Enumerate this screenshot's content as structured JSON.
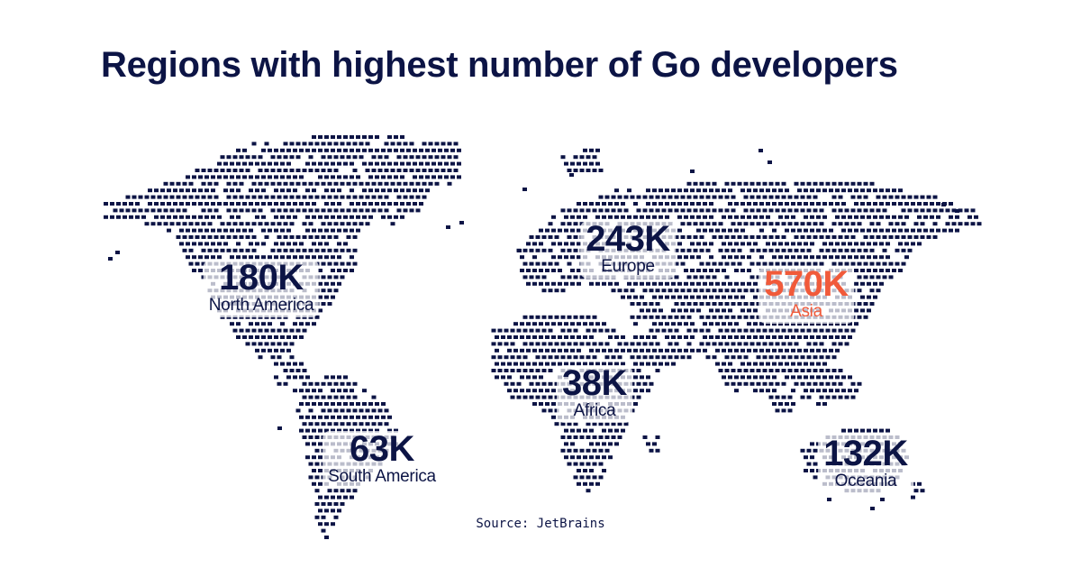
{
  "colors": {
    "title": "#0c1445",
    "dots": "#0c1445",
    "label_default": "#0c1445",
    "label_highlight": "#f15a3a"
  },
  "title": "Regions with highest number of Go developers",
  "source": "Source: JetBrains",
  "chart_data": {
    "type": "map",
    "title": "Regions with highest number of Go developers",
    "unit": "developers",
    "regions": [
      {
        "name": "North America",
        "value_label": "180K",
        "value": 180000,
        "highlight": false
      },
      {
        "name": "South America",
        "value_label": "63K",
        "value": 63000,
        "highlight": false
      },
      {
        "name": "Europe",
        "value_label": "243K",
        "value": 243000,
        "highlight": false
      },
      {
        "name": "Africa",
        "value_label": "38K",
        "value": 38000,
        "highlight": false
      },
      {
        "name": "Asia",
        "value_label": "570K",
        "value": 570000,
        "highlight": true
      },
      {
        "name": "Oceania",
        "value_label": "132K",
        "value": 132000,
        "highlight": false
      }
    ]
  }
}
